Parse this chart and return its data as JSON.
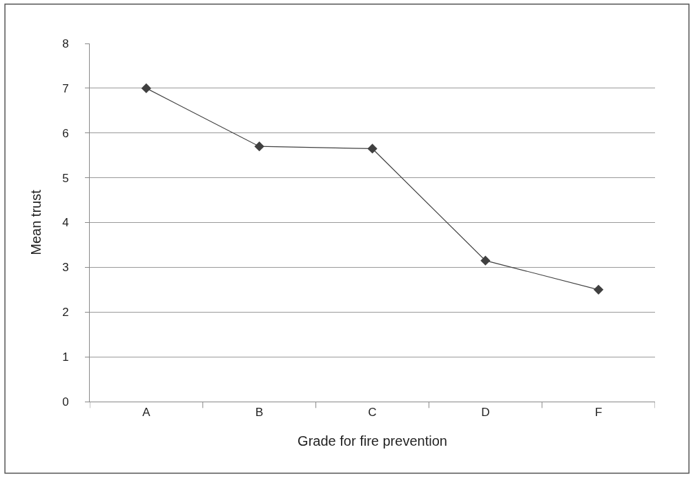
{
  "chart_data": {
    "type": "line",
    "xlabel": "Grade for fire prevention",
    "ylabel": "Mean trust",
    "categories": [
      "A",
      "B",
      "C",
      "D",
      "F"
    ],
    "series": [
      {
        "color": "#404040",
        "values": [
          7.0,
          5.7,
          5.65,
          3.15,
          2.5
        ]
      }
    ],
    "ylim": [
      0,
      8
    ],
    "yticks": [
      0,
      1,
      2,
      3,
      4,
      5,
      6,
      7,
      8
    ],
    "grid": "y",
    "marker": "diamond",
    "line_style": "solid"
  }
}
